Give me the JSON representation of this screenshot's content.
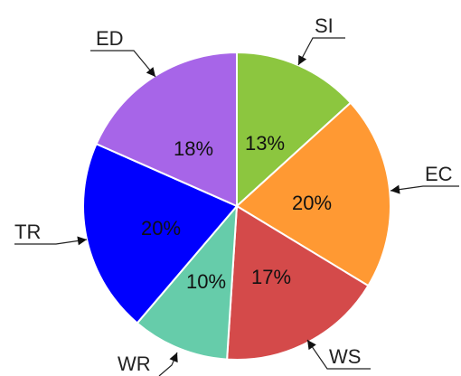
{
  "chart_data": {
    "type": "pie",
    "start_angle_deg": 90,
    "direction": "clockwise",
    "slices": [
      {
        "label": "SI",
        "value": 13,
        "value_label": "13%",
        "color": "#8cc63f"
      },
      {
        "label": "EC",
        "value": 20,
        "value_label": "20%",
        "color": "#ff9933"
      },
      {
        "label": "WS",
        "value": 17,
        "value_label": "17%",
        "color": "#d44a4a"
      },
      {
        "label": "WR",
        "value": 10,
        "value_label": "10%",
        "color": "#66ccaa"
      },
      {
        "label": "TR",
        "value": 20,
        "value_label": "20%",
        "color": "#0000ff"
      },
      {
        "label": "ED",
        "value": 18,
        "value_label": "18%",
        "color": "#a765e8"
      }
    ]
  }
}
